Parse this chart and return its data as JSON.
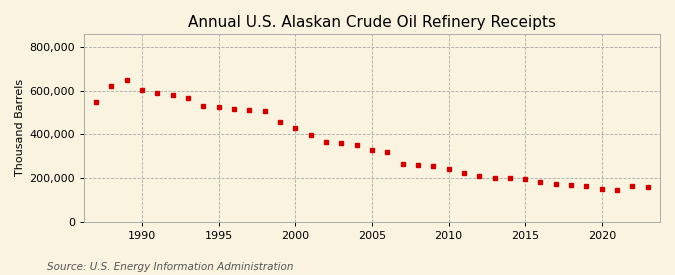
{
  "title": "Annual U.S. Alaskan Crude Oil Refinery Receipts",
  "ylabel": "Thousand Barrels",
  "source": "Source: U.S. Energy Information Administration",
  "background_color": "#faf3e0",
  "marker_color": "#cc0000",
  "grid_color": "#aaaaaa",
  "ylim": [
    0,
    860000
  ],
  "yticks": [
    0,
    200000,
    400000,
    600000,
    800000
  ],
  "xticks": [
    1990,
    1995,
    2000,
    2005,
    2010,
    2015,
    2020
  ],
  "years": [
    1987,
    1988,
    1989,
    1990,
    1991,
    1992,
    1993,
    1994,
    1995,
    1996,
    1997,
    1998,
    1999,
    2000,
    2001,
    2002,
    2003,
    2004,
    2005,
    2006,
    2007,
    2008,
    2009,
    2010,
    2011,
    2012,
    2013,
    2014,
    2015,
    2016,
    2017,
    2018,
    2019,
    2020,
    2021,
    2022,
    2023
  ],
  "values": [
    548000,
    620000,
    648000,
    605000,
    590000,
    580000,
    565000,
    530000,
    525000,
    515000,
    510000,
    505000,
    455000,
    430000,
    395000,
    365000,
    360000,
    350000,
    330000,
    320000,
    265000,
    260000,
    255000,
    240000,
    225000,
    210000,
    200000,
    200000,
    195000,
    180000,
    175000,
    170000,
    165000,
    150000,
    145000,
    165000,
    160000
  ],
  "title_fontsize": 11,
  "ylabel_fontsize": 8,
  "tick_fontsize": 8,
  "source_fontsize": 7.5
}
